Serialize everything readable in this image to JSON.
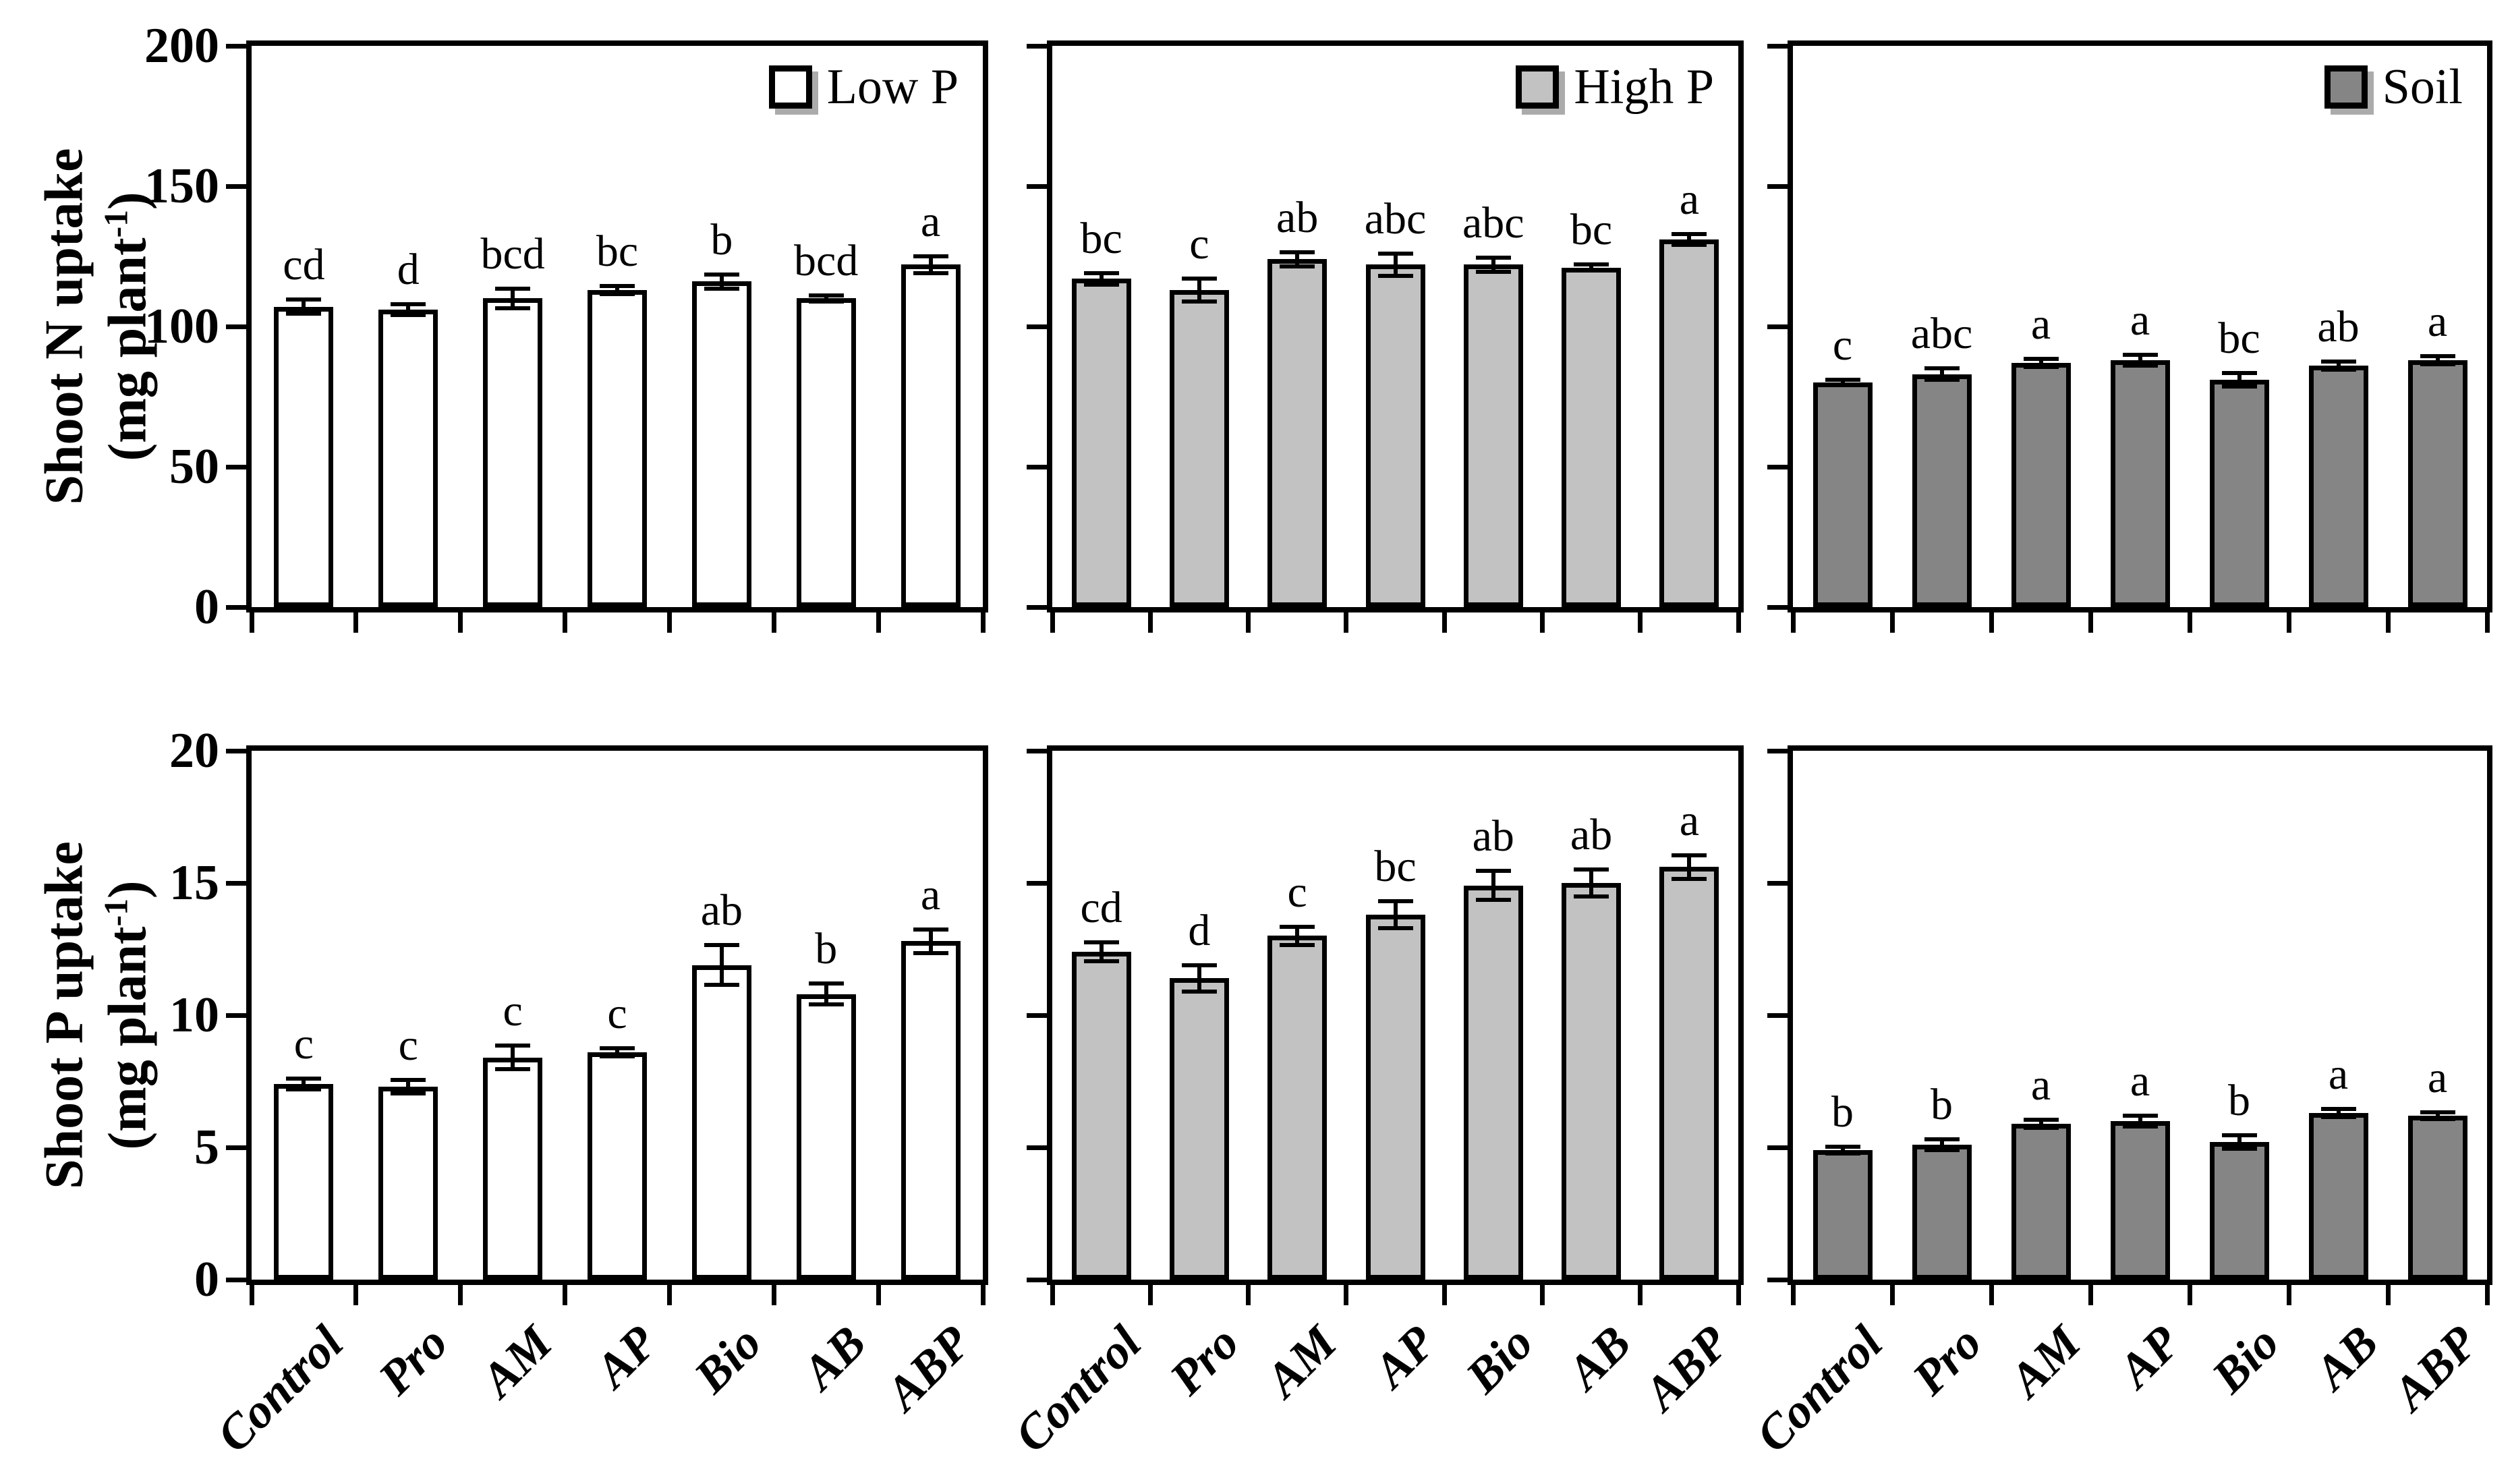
{
  "figure_title": "",
  "chart_data": {
    "type": "bar",
    "categories": [
      "Control",
      "Pro",
      "AM",
      "AP",
      "Bio",
      "AB",
      "ABP"
    ],
    "grid": "off",
    "legend_position": "top-right-inside",
    "colors": {
      "low_p_fill": "#ffffff",
      "high_p_fill": "#c2c2c2",
      "soil_fill": "#858585",
      "outline": "#000000"
    },
    "rows": [
      {
        "ylabel": "Shoot N uptake",
        "unit_prefix": "(mg  plant",
        "unit_sup": "-1",
        "unit_suffix": ")",
        "ylim": [
          0,
          200
        ],
        "yticks": [
          200,
          150,
          100,
          50,
          0
        ],
        "panels": [
          {
            "legend": "Low P",
            "fill": "#ffffff",
            "values": [
              107,
              106,
              110,
              113,
              116,
              110,
              122
            ],
            "errors": [
              2.5,
              2,
              3.5,
              1.5,
              2.5,
              1,
              3
            ],
            "letters": [
              "cd",
              "d",
              "bcd",
              "bc",
              "b",
              "bcd",
              "a"
            ]
          },
          {
            "legend": "High P",
            "fill": "#c2c2c2",
            "values": [
              117,
              113,
              124,
              122,
              122,
              121,
              131
            ],
            "errors": [
              2,
              4,
              2.5,
              4,
              2.5,
              1,
              2
            ],
            "letters": [
              "bc",
              "c",
              "ab",
              "abc",
              "abc",
              "bc",
              "a"
            ]
          },
          {
            "legend": "Soil",
            "fill": "#858585",
            "values": [
              80,
              83,
              87,
              88,
              81,
              86,
              88
            ],
            "errors": [
              1,
              2,
              1.5,
              2,
              2.5,
              1.5,
              1.5
            ],
            "letters": [
              "c",
              "abc",
              "a",
              "a",
              "bc",
              "ab",
              "a"
            ]
          }
        ]
      },
      {
        "ylabel": "Shoot P uptake",
        "unit_prefix": "(mg plant",
        "unit_sup": "-1",
        "unit_suffix": ")",
        "ylim": [
          0,
          20
        ],
        "yticks": [
          20,
          15,
          10,
          5,
          0
        ],
        "panels": [
          {
            "legend": null,
            "fill": "#ffffff",
            "values": [
              7.4,
              7.3,
              8.4,
              8.6,
              11.9,
              10.8,
              12.8
            ],
            "errors": [
              0.2,
              0.25,
              0.45,
              0.15,
              0.75,
              0.4,
              0.45
            ],
            "letters": [
              "c",
              "c",
              "c",
              "c",
              "ab",
              "b",
              "a"
            ]
          },
          {
            "legend": null,
            "fill": "#c2c2c2",
            "values": [
              12.4,
              11.4,
              13.0,
              13.8,
              14.9,
              15.0,
              15.6
            ],
            "errors": [
              0.35,
              0.5,
              0.35,
              0.5,
              0.55,
              0.5,
              0.45
            ],
            "letters": [
              "cd",
              "d",
              "c",
              "bc",
              "ab",
              "ab",
              "a"
            ]
          },
          {
            "legend": null,
            "fill": "#858585",
            "values": [
              4.9,
              5.1,
              5.9,
              6.0,
              5.2,
              6.3,
              6.2
            ],
            "errors": [
              0.12,
              0.2,
              0.15,
              0.2,
              0.25,
              0.15,
              0.12
            ],
            "letters": [
              "b",
              "b",
              "a",
              "a",
              "b",
              "a",
              "a"
            ]
          }
        ]
      }
    ]
  }
}
